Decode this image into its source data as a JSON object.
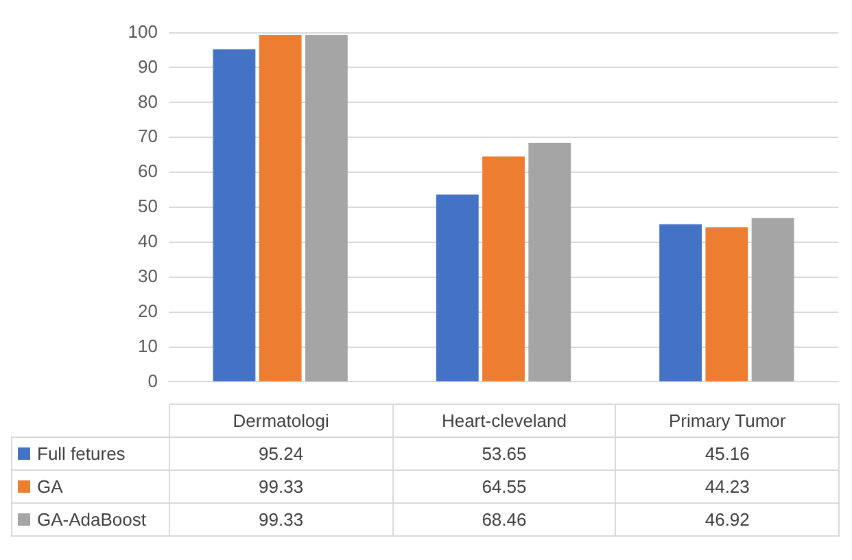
{
  "chart_data": {
    "type": "bar",
    "categories": [
      "Dermatologi",
      "Heart-cleveland",
      "Primary Tumor"
    ],
    "series": [
      {
        "name": "Full fetures",
        "color": "#4472c4",
        "values": [
          95.24,
          53.65,
          45.16
        ]
      },
      {
        "name": "GA",
        "color": "#ed7d31",
        "values": [
          99.33,
          64.55,
          44.23
        ]
      },
      {
        "name": "GA-AdaBoost",
        "color": "#a5a5a5",
        "values": [
          99.33,
          68.46,
          46.92
        ]
      }
    ],
    "ylim": [
      0,
      100
    ],
    "yticks": [
      0,
      10,
      20,
      30,
      40,
      50,
      60,
      70,
      80,
      90,
      100
    ],
    "grid": "y",
    "data_labels": true,
    "legend": "left"
  }
}
